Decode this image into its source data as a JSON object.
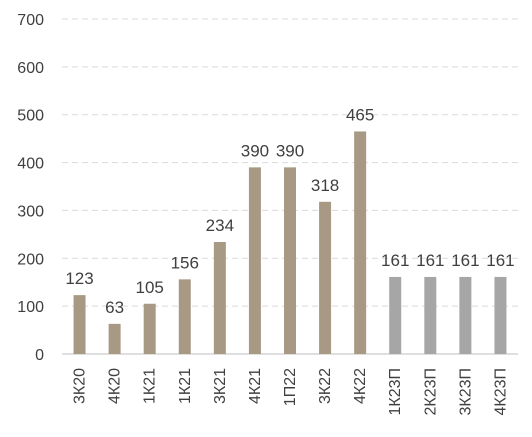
{
  "chart_data": {
    "type": "bar",
    "title": "",
    "xlabel": "",
    "ylabel": "",
    "ylim": [
      0,
      700
    ],
    "yticks": [
      0,
      100,
      200,
      300,
      400,
      500,
      600,
      700
    ],
    "grid": true,
    "categories": [
      "3К20",
      "4К20",
      "1К21",
      "1К21",
      "3К21",
      "4К21",
      "1П22",
      "3К22",
      "4К22",
      "1К23П",
      "2К23П",
      "3К23П",
      "4К23П"
    ],
    "values": [
      123,
      63,
      105,
      156,
      234,
      390,
      390,
      318,
      465,
      161,
      161,
      161,
      161
    ],
    "data_labels": [
      "123",
      "63",
      "105",
      "156",
      "234",
      "390",
      "390",
      "318",
      "465",
      "161",
      "161",
      "161",
      "161"
    ],
    "bar_colors": [
      "#a89984",
      "#a89984",
      "#a89984",
      "#a89984",
      "#a89984",
      "#a89984",
      "#a89984",
      "#a89984",
      "#a89984",
      "#a6a6a6",
      "#a6a6a6",
      "#a6a6a6",
      "#a6a6a6"
    ]
  }
}
